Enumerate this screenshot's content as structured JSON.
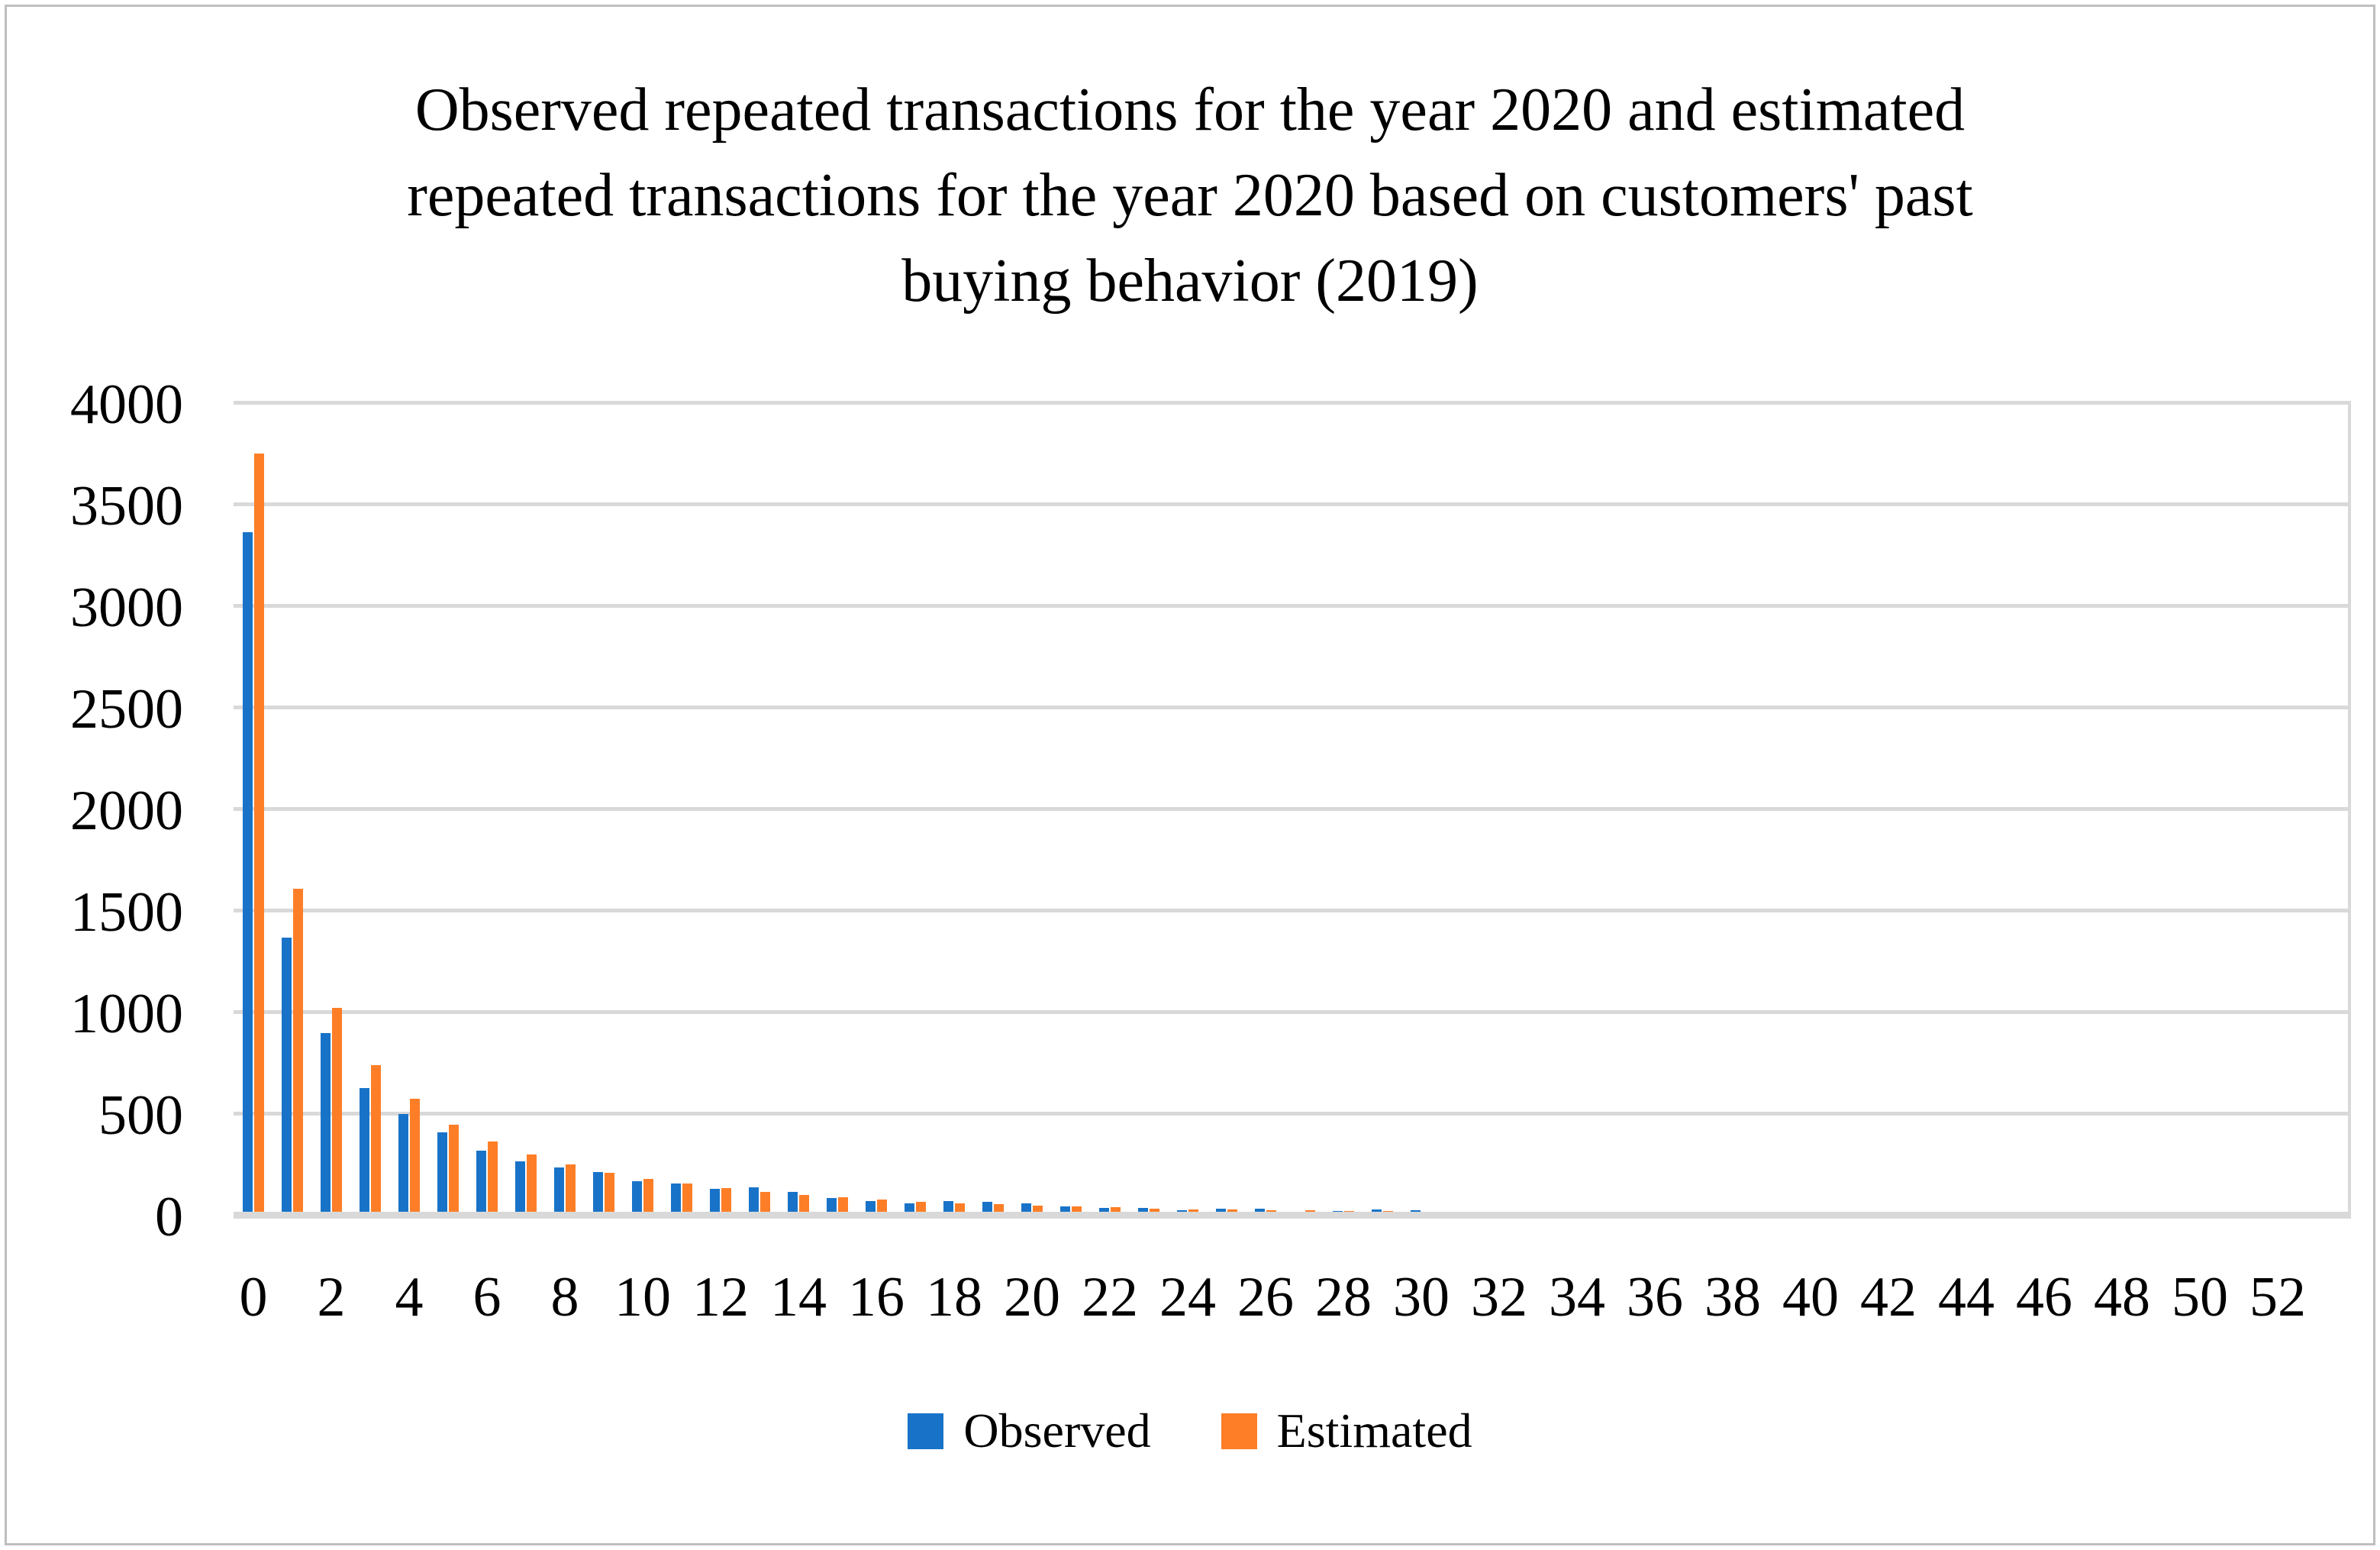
{
  "figure": {
    "title_lines": [
      "Observed repeated transactions for the year 2020 and estimated",
      "repeated transactions for the year 2020 based on customers' past",
      "buying behavior (2019)"
    ],
    "legend": {
      "observed_label": "Observed",
      "estimated_label": "Estimated"
    },
    "colors": {
      "observed": "#1873c8",
      "estimated": "#fd7e27",
      "gridline": "#d9d9d9",
      "border": "#bfbfbf"
    }
  },
  "chart_data": {
    "type": "bar",
    "title": "Observed repeated transactions for the year 2020 and estimated repeated transactions for the year 2020 based on customers' past buying behavior (2019)",
    "xlabel": "",
    "ylabel": "",
    "ylim": [
      0,
      4000
    ],
    "y_ticks": [
      0,
      500,
      1000,
      1500,
      2000,
      2500,
      3000,
      3500,
      4000
    ],
    "x_tick_labels": [
      "0",
      "2",
      "4",
      "6",
      "8",
      "10",
      "12",
      "14",
      "16",
      "18",
      "20",
      "22",
      "24",
      "26",
      "28",
      "30",
      "32",
      "34",
      "36",
      "38",
      "40",
      "42",
      "44",
      "46",
      "48",
      "50",
      "52"
    ],
    "grid": "horizontal",
    "legend_position": "bottom",
    "categories": [
      0,
      1,
      2,
      3,
      4,
      5,
      6,
      7,
      8,
      9,
      10,
      11,
      12,
      13,
      14,
      15,
      16,
      17,
      18,
      19,
      20,
      21,
      22,
      23,
      24,
      25,
      26,
      27,
      28,
      29,
      30,
      31,
      32,
      33,
      34,
      35,
      36,
      37,
      38,
      39,
      40,
      41,
      42,
      43,
      44,
      45,
      46,
      47,
      48,
      49,
      50,
      51,
      52
    ],
    "series": [
      {
        "name": "Observed",
        "color": "#1873c8",
        "values": [
          3360,
          1365,
          895,
          625,
          495,
          405,
          315,
          265,
          233,
          212,
          164,
          154,
          129,
          134,
          113,
          83,
          66,
          55,
          66,
          64,
          55,
          40,
          34,
          34,
          22,
          30,
          31,
          0,
          18,
          28,
          23,
          0,
          0,
          0,
          0,
          0,
          0,
          0,
          0,
          0,
          0,
          0,
          0,
          0,
          0,
          0,
          0,
          0,
          0,
          0,
          0,
          0,
          0
        ]
      },
      {
        "name": "Estimated",
        "color": "#fd7e27",
        "values": [
          3750,
          1605,
          1020,
          735,
          570,
          445,
          360,
          297,
          248,
          208,
          175,
          154,
          130,
          113,
          96,
          86,
          76,
          65,
          56,
          51,
          44,
          42,
          38,
          31,
          27,
          25,
          23,
          23,
          19,
          18,
          0,
          0,
          0,
          0,
          0,
          0,
          0,
          0,
          0,
          0,
          0,
          0,
          0,
          0,
          0,
          0,
          0,
          0,
          0,
          0,
          0,
          0,
          0
        ]
      }
    ]
  }
}
